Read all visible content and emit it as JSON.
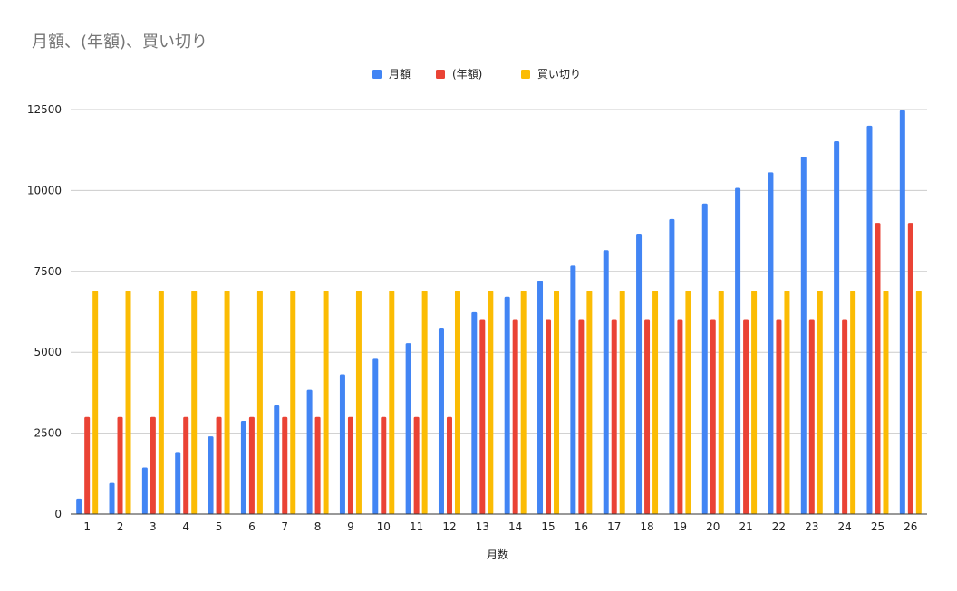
{
  "chart_data": {
    "type": "bar",
    "title": "月額、(年額)、買い切り",
    "xlabel": "月数",
    "ylabel": "",
    "categories": [
      "1",
      "2",
      "3",
      "4",
      "5",
      "6",
      "7",
      "8",
      "9",
      "10",
      "11",
      "12",
      "13",
      "14",
      "15",
      "16",
      "17",
      "18",
      "19",
      "20",
      "21",
      "22",
      "23",
      "24",
      "25",
      "26"
    ],
    "ylim": [
      0,
      12500
    ],
    "yticks": [
      0,
      2500,
      5000,
      7500,
      10000,
      12500
    ],
    "legend_position": "top-center",
    "grid": true,
    "series": [
      {
        "name": "月額",
        "color": "#4285F4",
        "values": [
          480,
          960,
          1440,
          1920,
          2400,
          2880,
          3360,
          3840,
          4320,
          4800,
          5280,
          5760,
          6240,
          6720,
          7200,
          7680,
          8160,
          8640,
          9120,
          9600,
          10080,
          10560,
          11040,
          11520,
          12000,
          12480
        ]
      },
      {
        "name": "(年額)",
        "color": "#EA4335",
        "values": [
          3000,
          3000,
          3000,
          3000,
          3000,
          3000,
          3000,
          3000,
          3000,
          3000,
          3000,
          3000,
          6000,
          6000,
          6000,
          6000,
          6000,
          6000,
          6000,
          6000,
          6000,
          6000,
          6000,
          6000,
          9000,
          9000
        ]
      },
      {
        "name": "買い切り",
        "color": "#FBBC04",
        "values": [
          6900,
          6900,
          6900,
          6900,
          6900,
          6900,
          6900,
          6900,
          6900,
          6900,
          6900,
          6900,
          6900,
          6900,
          6900,
          6900,
          6900,
          6900,
          6900,
          6900,
          6900,
          6900,
          6900,
          6900,
          6900,
          6900
        ]
      }
    ]
  }
}
